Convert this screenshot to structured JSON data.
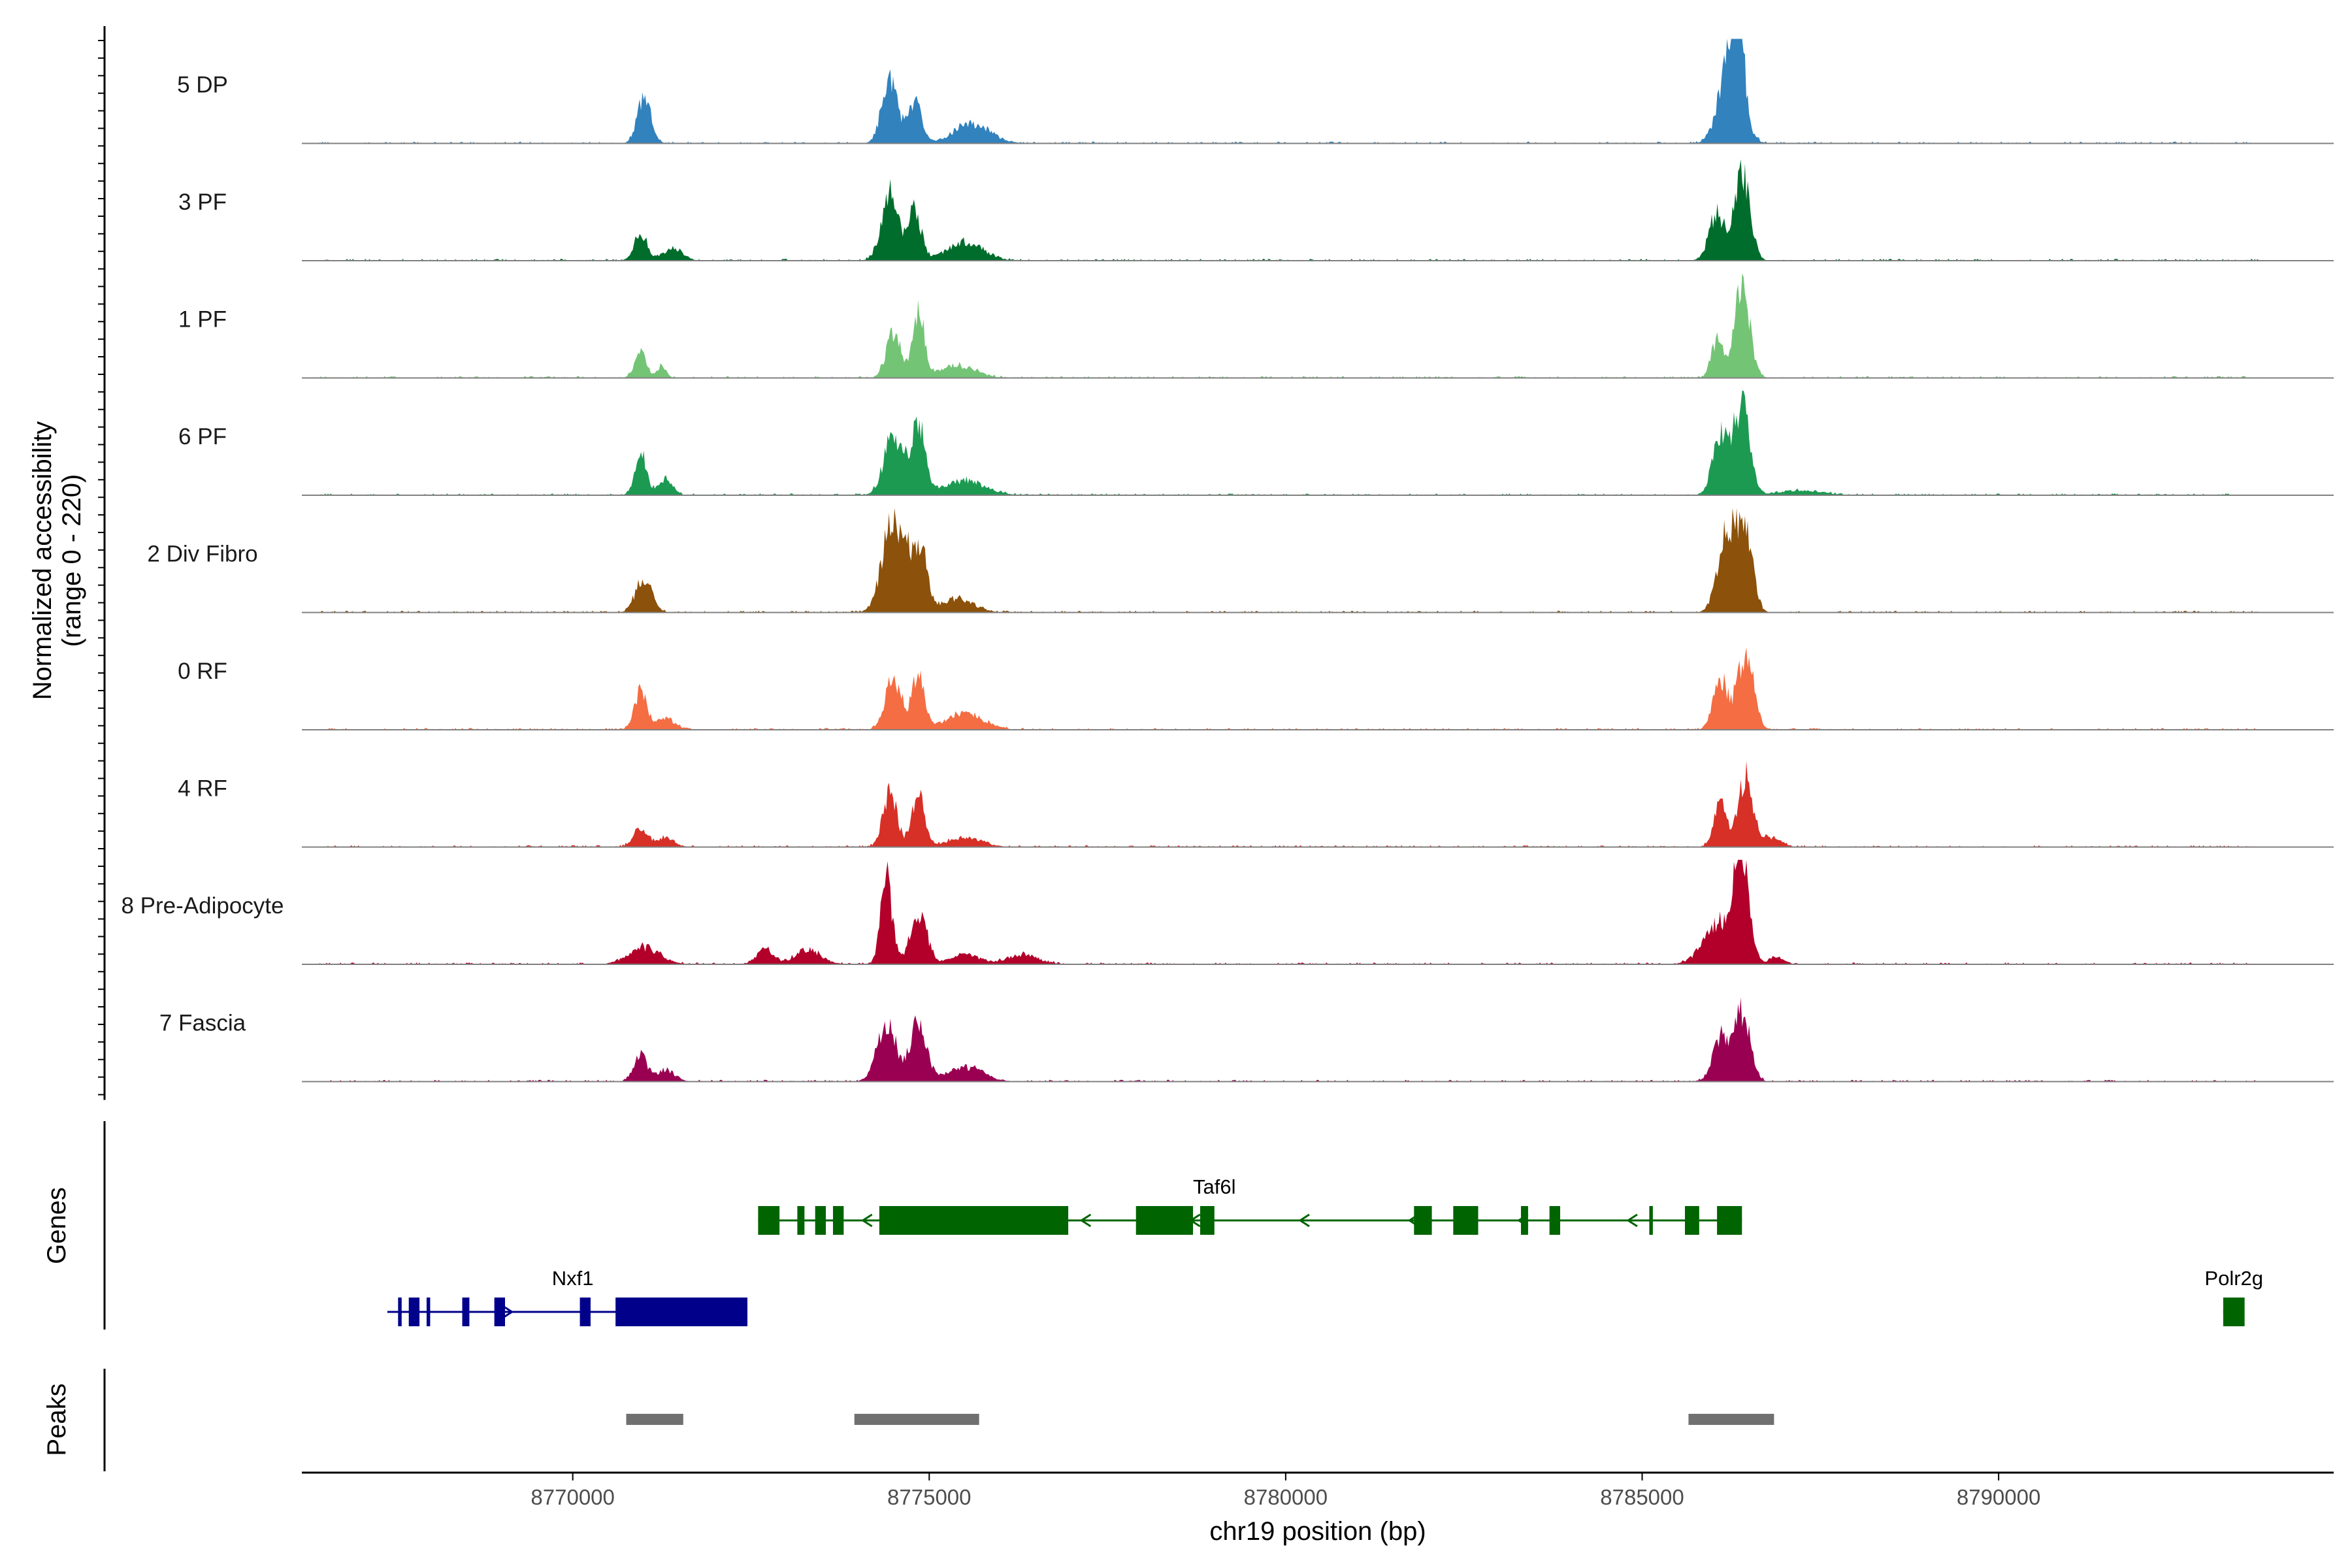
{
  "chart_data": {
    "type": "area",
    "title": "",
    "xlabel": "chr19 position (bp)",
    "ylabel": "Normalized accessibility",
    "ylabel_range": "(range 0 - 220)",
    "ylim": [
      0,
      220
    ],
    "xlim": [
      8766200,
      8794700
    ],
    "x_ticks": [
      8770000,
      8775000,
      8780000,
      8785000,
      8790000
    ],
    "x_tick_labels": [
      "8770000",
      "8775000",
      "8780000",
      "8785000",
      "8790000"
    ],
    "tracks": [
      {
        "name": "5 DP",
        "color": "#3182bd",
        "peaks": [
          [
            8771000,
            95,
            95
          ],
          [
            8774450,
            140,
            110
          ],
          [
            8774800,
            90,
            90
          ],
          [
            8775600,
            40,
            260
          ],
          [
            8786250,
            200,
            150
          ],
          [
            8786350,
            150,
            70
          ]
        ]
      },
      {
        "name": "3 PF",
        "color": "#006d2c",
        "peaks": [
          [
            8770950,
            60,
            90
          ],
          [
            8771400,
            25,
            140
          ],
          [
            8774450,
            140,
            120
          ],
          [
            8774800,
            105,
            90
          ],
          [
            8775500,
            40,
            250
          ],
          [
            8786050,
            100,
            110
          ],
          [
            8786400,
            180,
            110
          ]
        ]
      },
      {
        "name": "1 PF",
        "color": "#74c476",
        "peaks": [
          [
            8770950,
            60,
            80
          ],
          [
            8771250,
            25,
            60
          ],
          [
            8774500,
            100,
            100
          ],
          [
            8774850,
            140,
            80
          ],
          [
            8775400,
            25,
            250
          ],
          [
            8786050,
            80,
            80
          ],
          [
            8786400,
            185,
            110
          ]
        ]
      },
      {
        "name": "6 PF",
        "color": "#1d9a52",
        "peaks": [
          [
            8770950,
            90,
            80
          ],
          [
            8771300,
            35,
            100
          ],
          [
            8774500,
            130,
            130
          ],
          [
            8774850,
            140,
            100
          ],
          [
            8775500,
            30,
            280
          ],
          [
            8786100,
            120,
            110
          ],
          [
            8786400,
            190,
            110
          ],
          [
            8787200,
            10,
            300
          ]
        ]
      },
      {
        "name": "2 Div Fibro",
        "color": "#8c510a",
        "peaks": [
          [
            8771000,
            75,
            110
          ],
          [
            8774500,
            200,
            150
          ],
          [
            8774850,
            140,
            110
          ],
          [
            8775400,
            30,
            220
          ],
          [
            8786200,
            170,
            130
          ],
          [
            8786450,
            175,
            100
          ]
        ]
      },
      {
        "name": "0 RF",
        "color": "#f46d43",
        "peaks": [
          [
            8770950,
            80,
            90
          ],
          [
            8771300,
            25,
            120
          ],
          [
            8774500,
            110,
            110
          ],
          [
            8774850,
            115,
            90
          ],
          [
            8775500,
            35,
            260
          ],
          [
            8786100,
            110,
            100
          ],
          [
            8786450,
            165,
            110
          ]
        ]
      },
      {
        "name": "4 RF",
        "color": "#d73027",
        "peaks": [
          [
            8770950,
            40,
            100
          ],
          [
            8771300,
            20,
            120
          ],
          [
            8774450,
            110,
            100
          ],
          [
            8774850,
            110,
            90
          ],
          [
            8775500,
            20,
            240
          ],
          [
            8786100,
            90,
            90
          ],
          [
            8786450,
            150,
            100
          ],
          [
            8786800,
            20,
            140
          ]
        ]
      },
      {
        "name": "8 Pre-Adipocyte",
        "color": "#b2002a",
        "peaks": [
          [
            8771000,
            35,
            220
          ],
          [
            8772700,
            30,
            120
          ],
          [
            8773300,
            30,
            180
          ],
          [
            8774400,
            175,
            80
          ],
          [
            8774850,
            100,
            120
          ],
          [
            8775500,
            20,
            200
          ],
          [
            8776300,
            20,
            220
          ],
          [
            8786100,
            90,
            220
          ],
          [
            8786400,
            215,
            100
          ],
          [
            8786900,
            15,
            100
          ]
        ]
      },
      {
        "name": "7 Fascia",
        "color": "#9a0052",
        "peaks": [
          [
            8770950,
            55,
            90
          ],
          [
            8771300,
            25,
            130
          ],
          [
            8774400,
            130,
            130
          ],
          [
            8774850,
            130,
            110
          ],
          [
            8775500,
            30,
            250
          ],
          [
            8786100,
            90,
            110
          ],
          [
            8786400,
            145,
            110
          ]
        ]
      }
    ],
    "genes": [
      {
        "name": "Taf6l",
        "strand": "-",
        "color": "#006400",
        "row": 1,
        "start": 8772600,
        "end": 8786400,
        "label_x": 8779000,
        "exons": [
          [
            8772600,
            8772900
          ],
          [
            8773150,
            8773250
          ],
          [
            8773400,
            8773550
          ],
          [
            8773650,
            8773800
          ],
          [
            8774300,
            8776950
          ],
          [
            8777900,
            8778700
          ],
          [
            8778800,
            8779000
          ],
          [
            8781800,
            8782050
          ],
          [
            8782350,
            8782700
          ],
          [
            8783300,
            8783400
          ],
          [
            8783700,
            8783850
          ],
          [
            8785100,
            8785150
          ],
          [
            8785600,
            8785800
          ],
          [
            8786050,
            8786400
          ]
        ]
      },
      {
        "name": "Nxf1",
        "strand": "+",
        "color": "#00008b",
        "row": 2,
        "start": 8767400,
        "end": 8772450,
        "label_x": 8770000,
        "exons": [
          [
            8767550,
            8767600
          ],
          [
            8767700,
            8767850
          ],
          [
            8767950,
            8768000
          ],
          [
            8768450,
            8768550
          ],
          [
            8768900,
            8769050
          ],
          [
            8770100,
            8770250
          ],
          [
            8770600,
            8772450
          ]
        ]
      },
      {
        "name": "Polr2g",
        "strand": "+",
        "color": "#006400",
        "row": 2,
        "start": 8793150,
        "end": 8793450,
        "label_x": 8793300,
        "exons": [
          [
            8793150,
            8793450
          ]
        ]
      }
    ],
    "genes_label": "Genes",
    "peak_regions": [
      [
        8770750,
        8771550
      ],
      [
        8773950,
        8775700
      ],
      [
        8785650,
        8786850
      ]
    ],
    "peaks_label": "Peaks",
    "colors": {
      "peak_region": "#707070",
      "baseline": "#808080",
      "axis": "#000000"
    }
  }
}
